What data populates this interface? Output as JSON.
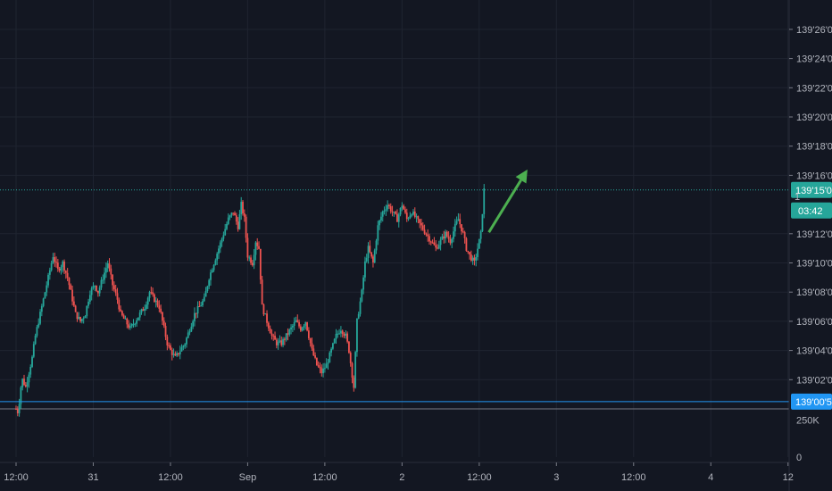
{
  "chart_data": {
    "type": "candlestick",
    "y_axis": {
      "min": 139.0,
      "max": 139.275,
      "ticks": [
        "139'26'0",
        "139'24'0",
        "139'22'0",
        "139'20'0",
        "139'18'0",
        "139'16'0",
        "139'12'0",
        "139'10'0",
        "139'08'0",
        "139'06'0",
        "139'04'0",
        "139'02'0"
      ],
      "tick_values": [
        139.26,
        139.24,
        139.22,
        139.2,
        139.18,
        139.16,
        139.12,
        139.1,
        139.08,
        139.06,
        139.04,
        139.02
      ]
    },
    "x_axis": {
      "ticks": [
        "12:00",
        "31",
        "12:00",
        "Sep",
        "12:00",
        "2",
        "12:00",
        "3",
        "12:00",
        "4",
        "12"
      ],
      "tick_hours": [
        0,
        24,
        48,
        72,
        96,
        120,
        144,
        168,
        192,
        216,
        240
      ],
      "max_hours": 240
    },
    "volume_axis": {
      "ticks": [
        "250K",
        "0"
      ],
      "tick_values": [
        250000,
        0
      ],
      "max": 300000
    },
    "current_price": {
      "label": "139'15'0",
      "value": 139.15,
      "color": "#26a69a"
    },
    "countdown": {
      "label": "03:42",
      "partial_label": "1"
    },
    "support_line": {
      "label": "139'00'5",
      "value": 139.005,
      "color": "#2196f3"
    },
    "arrow": {
      "color": "#4caf50",
      "from_hours": 147,
      "from_price": 139.121,
      "to_hours": 159,
      "to_price": 139.164
    },
    "colors": {
      "up": "#26a69a",
      "down": "#ef5350",
      "background": "#131722",
      "grid": "#1f2430"
    },
    "candles_price_path": [
      [
        0,
        139.0
      ],
      [
        0.5,
        138.998
      ],
      [
        1.0,
        139.005
      ],
      [
        1.5,
        139.015
      ],
      [
        2.0,
        139.02
      ],
      [
        3.0,
        139.015
      ],
      [
        4.0,
        139.025
      ],
      [
        5.0,
        139.035
      ],
      [
        6.0,
        139.05
      ],
      [
        7.5,
        139.065
      ],
      [
        9.0,
        139.08
      ],
      [
        10.5,
        139.095
      ],
      [
        11.5,
        139.105
      ],
      [
        13.0,
        139.095
      ],
      [
        14.5,
        139.1
      ],
      [
        16.0,
        139.09
      ],
      [
        17.0,
        139.08
      ],
      [
        18.5,
        139.065
      ],
      [
        20.0,
        139.06
      ],
      [
        21.5,
        139.065
      ],
      [
        23.0,
        139.08
      ],
      [
        24.5,
        139.085
      ],
      [
        25.5,
        139.08
      ],
      [
        27.0,
        139.09
      ],
      [
        28.5,
        139.1
      ],
      [
        30.0,
        139.085
      ],
      [
        31.5,
        139.075
      ],
      [
        32.5,
        139.065
      ],
      [
        34.0,
        139.06
      ],
      [
        35.5,
        139.055
      ],
      [
        37.0,
        139.06
      ],
      [
        38.5,
        139.065
      ],
      [
        40.0,
        139.07
      ],
      [
        41.5,
        139.08
      ],
      [
        43.0,
        139.075
      ],
      [
        44.5,
        139.07
      ],
      [
        45.5,
        139.06
      ],
      [
        47.0,
        139.045
      ],
      [
        48.0,
        139.04
      ],
      [
        49.5,
        139.035
      ],
      [
        51.0,
        139.04
      ],
      [
        52.5,
        139.045
      ],
      [
        54.0,
        139.055
      ],
      [
        55.5,
        139.065
      ],
      [
        57.0,
        139.07
      ],
      [
        58.5,
        139.075
      ],
      [
        60.0,
        139.09
      ],
      [
        61.5,
        139.1
      ],
      [
        63.0,
        139.11
      ],
      [
        64.5,
        139.12
      ],
      [
        66.0,
        139.13
      ],
      [
        67.5,
        139.135
      ],
      [
        69.0,
        139.125
      ],
      [
        70.0,
        139.14
      ],
      [
        71.0,
        139.13
      ],
      [
        72.0,
        139.105
      ],
      [
        73.5,
        139.1
      ],
      [
        74.5,
        139.115
      ],
      [
        75.5,
        139.11
      ],
      [
        76.5,
        139.07
      ],
      [
        78.0,
        139.06
      ],
      [
        79.5,
        139.05
      ],
      [
        81.0,
        139.045
      ],
      [
        82.5,
        139.045
      ],
      [
        84.0,
        139.05
      ],
      [
        85.5,
        139.055
      ],
      [
        87.0,
        139.06
      ],
      [
        88.5,
        139.055
      ],
      [
        90.0,
        139.06
      ],
      [
        91.0,
        139.05
      ],
      [
        92.0,
        139.04
      ],
      [
        93.5,
        139.03
      ],
      [
        95.0,
        139.025
      ],
      [
        96.5,
        139.03
      ],
      [
        98.0,
        139.04
      ],
      [
        99.5,
        139.05
      ],
      [
        101.0,
        139.055
      ],
      [
        102.5,
        139.05
      ],
      [
        103.5,
        139.04
      ],
      [
        105.0,
        139.015
      ],
      [
        106.0,
        139.06
      ],
      [
        107.5,
        139.08
      ],
      [
        108.5,
        139.1
      ],
      [
        109.5,
        139.11
      ],
      [
        111.0,
        139.1
      ],
      [
        112.5,
        139.125
      ],
      [
        114.0,
        139.135
      ],
      [
        115.5,
        139.14
      ],
      [
        117.0,
        139.135
      ],
      [
        118.5,
        139.13
      ],
      [
        120.0,
        139.14
      ],
      [
        121.5,
        139.13
      ],
      [
        123.0,
        139.135
      ],
      [
        124.5,
        139.13
      ],
      [
        126.0,
        139.125
      ],
      [
        127.5,
        139.12
      ],
      [
        129.0,
        139.115
      ],
      [
        130.5,
        139.11
      ],
      [
        132.0,
        139.115
      ],
      [
        133.5,
        139.12
      ],
      [
        135.0,
        139.115
      ],
      [
        136.5,
        139.125
      ],
      [
        137.5,
        139.13
      ],
      [
        139.0,
        139.12
      ],
      [
        140.0,
        139.11
      ],
      [
        141.0,
        139.105
      ],
      [
        142.5,
        139.1
      ],
      [
        143.5,
        139.11
      ],
      [
        144.5,
        139.12
      ],
      [
        145.5,
        139.15
      ]
    ]
  }
}
